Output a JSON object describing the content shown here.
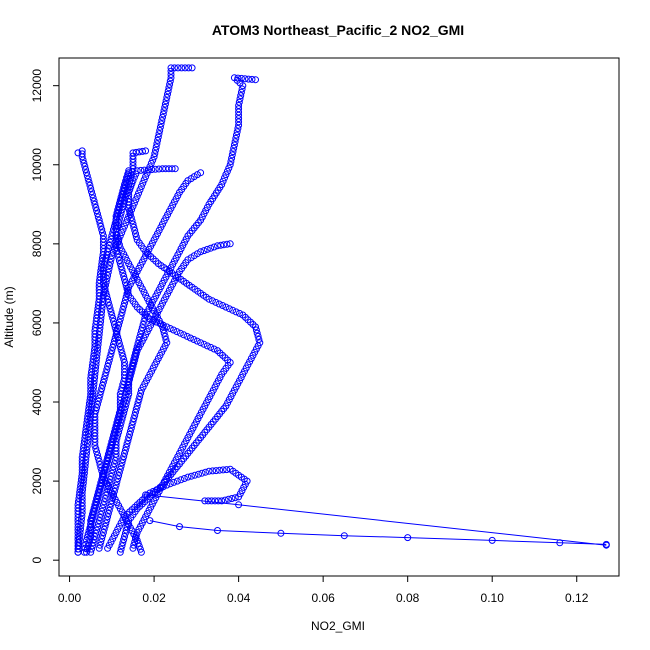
{
  "chart_data": {
    "type": "scatter",
    "title": "ATOM3 Northeast_Pacific_2 NO2_GMI",
    "xlabel": "NO2_GMI",
    "ylabel": "Altitude (m)",
    "xlim": [
      -0.0025,
      0.13
    ],
    "ylim": [
      -400,
      12700
    ],
    "xticks": [
      "0.00",
      "0.02",
      "0.04",
      "0.06",
      "0.08",
      "0.10",
      "0.12"
    ],
    "xtick_values": [
      0,
      0.02,
      0.04,
      0.06,
      0.08,
      0.1,
      0.12
    ],
    "yticks": [
      "0",
      "2000",
      "4000",
      "6000",
      "8000",
      "10000",
      "12000"
    ],
    "ytick_values": [
      0,
      2000,
      4000,
      6000,
      8000,
      10000,
      12000
    ],
    "marker": "open-circle",
    "color": "#0000ff",
    "profiles": [
      [
        [
          0.002,
          200
        ],
        [
          0.002,
          600
        ],
        [
          0.002,
          1000
        ],
        [
          0.002,
          1400
        ],
        [
          0.0025,
          1800
        ],
        [
          0.003,
          2200
        ],
        [
          0.003,
          2600
        ],
        [
          0.0035,
          3000
        ],
        [
          0.004,
          3400
        ],
        [
          0.0045,
          3800
        ],
        [
          0.005,
          4200
        ],
        [
          0.005,
          4600
        ],
        [
          0.0055,
          5000
        ],
        [
          0.006,
          5400
        ],
        [
          0.006,
          5800
        ],
        [
          0.0065,
          6200
        ],
        [
          0.007,
          6600
        ],
        [
          0.007,
          7000
        ],
        [
          0.0075,
          7400
        ],
        [
          0.008,
          7800
        ],
        [
          0.008,
          8200
        ],
        [
          0.007,
          8600
        ],
        [
          0.006,
          9000
        ],
        [
          0.005,
          9400
        ],
        [
          0.004,
          9800
        ],
        [
          0.003,
          10200
        ],
        [
          0.003,
          10350
        ],
        [
          0.002,
          10300
        ]
      ],
      [
        [
          0.002,
          200
        ],
        [
          0.0025,
          700
        ],
        [
          0.003,
          1200
        ],
        [
          0.003,
          1700
        ],
        [
          0.0035,
          2200
        ],
        [
          0.004,
          2700
        ],
        [
          0.0045,
          3200
        ],
        [
          0.005,
          3700
        ],
        [
          0.0055,
          4200
        ],
        [
          0.006,
          4700
        ],
        [
          0.0065,
          5200
        ],
        [
          0.007,
          5700
        ],
        [
          0.0075,
          6200
        ],
        [
          0.008,
          6700
        ],
        [
          0.009,
          7200
        ],
        [
          0.01,
          7700
        ],
        [
          0.012,
          8200
        ],
        [
          0.014,
          8700
        ],
        [
          0.016,
          9200
        ],
        [
          0.018,
          9700
        ],
        [
          0.02,
          10200
        ],
        [
          0.021,
          10700
        ],
        [
          0.022,
          11200
        ],
        [
          0.023,
          11700
        ],
        [
          0.024,
          12200
        ],
        [
          0.024,
          12450
        ],
        [
          0.029,
          12450
        ]
      ],
      [
        [
          0.0035,
          200
        ],
        [
          0.004,
          500
        ],
        [
          0.005,
          900
        ],
        [
          0.006,
          1300
        ],
        [
          0.007,
          1700
        ],
        [
          0.008,
          2100
        ],
        [
          0.009,
          2500
        ],
        [
          0.01,
          2900
        ],
        [
          0.011,
          3300
        ],
        [
          0.012,
          3700
        ],
        [
          0.013,
          4100
        ],
        [
          0.014,
          4500
        ],
        [
          0.015,
          4900
        ],
        [
          0.016,
          5300
        ],
        [
          0.018,
          5700
        ],
        [
          0.02,
          6100
        ],
        [
          0.022,
          6500
        ],
        [
          0.024,
          6900
        ],
        [
          0.026,
          7300
        ],
        [
          0.028,
          7600
        ],
        [
          0.031,
          7800
        ],
        [
          0.035,
          7950
        ],
        [
          0.038,
          8000
        ]
      ],
      [
        [
          0.005,
          200
        ],
        [
          0.006,
          600
        ],
        [
          0.007,
          1000
        ],
        [
          0.008,
          1400
        ],
        [
          0.009,
          1800
        ],
        [
          0.01,
          2200
        ],
        [
          0.011,
          2600
        ],
        [
          0.011,
          3000
        ],
        [
          0.012,
          3400
        ],
        [
          0.013,
          3800
        ],
        [
          0.014,
          4200
        ],
        [
          0.014,
          4600
        ],
        [
          0.015,
          5000
        ],
        [
          0.016,
          5400
        ],
        [
          0.017,
          5800
        ],
        [
          0.018,
          6200
        ],
        [
          0.02,
          6600
        ],
        [
          0.022,
          7000
        ],
        [
          0.024,
          7400
        ],
        [
          0.026,
          7800
        ],
        [
          0.028,
          8200
        ],
        [
          0.031,
          8600
        ],
        [
          0.033,
          9000
        ],
        [
          0.036,
          9500
        ],
        [
          0.038,
          10000
        ],
        [
          0.039,
          10500
        ],
        [
          0.04,
          11000
        ],
        [
          0.04,
          11500
        ],
        [
          0.041,
          12000
        ],
        [
          0.039,
          12200
        ],
        [
          0.044,
          12150
        ]
      ],
      [
        [
          0.009,
          300
        ],
        [
          0.011,
          700
        ],
        [
          0.013,
          1100
        ],
        [
          0.016,
          1400
        ],
        [
          0.019,
          1700
        ],
        [
          0.023,
          1900
        ],
        [
          0.028,
          2100
        ],
        [
          0.033,
          2250
        ],
        [
          0.038,
          2300
        ],
        [
          0.042,
          2000
        ],
        [
          0.04,
          1600
        ],
        [
          0.036,
          1500
        ],
        [
          0.032,
          1500
        ]
      ],
      [
        [
          0.012,
          200
        ],
        [
          0.013,
          600
        ],
        [
          0.014,
          1000
        ],
        [
          0.016,
          1300
        ],
        [
          0.019,
          1600
        ],
        [
          0.022,
          1900
        ],
        [
          0.025,
          2300
        ],
        [
          0.028,
          2700
        ],
        [
          0.031,
          3100
        ],
        [
          0.034,
          3500
        ],
        [
          0.037,
          3900
        ],
        [
          0.039,
          4300
        ],
        [
          0.041,
          4700
        ],
        [
          0.043,
          5100
        ],
        [
          0.045,
          5500
        ],
        [
          0.044,
          5900
        ],
        [
          0.041,
          6200
        ],
        [
          0.037,
          6400
        ],
        [
          0.033,
          6600
        ],
        [
          0.029,
          6900
        ],
        [
          0.025,
          7200
        ],
        [
          0.021,
          7500
        ],
        [
          0.018,
          7800
        ],
        [
          0.016,
          8100
        ],
        [
          0.015,
          8500
        ],
        [
          0.014,
          8900
        ],
        [
          0.014,
          9300
        ],
        [
          0.015,
          9600
        ],
        [
          0.016,
          9850
        ],
        [
          0.022,
          9900
        ],
        [
          0.025,
          9900
        ]
      ],
      [
        [
          0.015,
          300
        ],
        [
          0.016,
          700
        ],
        [
          0.018,
          1100
        ],
        [
          0.02,
          1500
        ],
        [
          0.022,
          1900
        ],
        [
          0.024,
          2300
        ],
        [
          0.026,
          2700
        ],
        [
          0.028,
          3100
        ],
        [
          0.03,
          3500
        ],
        [
          0.032,
          3900
        ],
        [
          0.034,
          4300
        ],
        [
          0.036,
          4700
        ],
        [
          0.038,
          5000
        ],
        [
          0.035,
          5300
        ],
        [
          0.031,
          5500
        ],
        [
          0.027,
          5700
        ],
        [
          0.023,
          5900
        ],
        [
          0.019,
          6100
        ],
        [
          0.016,
          6400
        ],
        [
          0.014,
          6700
        ],
        [
          0.013,
          7100
        ],
        [
          0.012,
          7500
        ],
        [
          0.011,
          7900
        ],
        [
          0.011,
          8300
        ],
        [
          0.012,
          8700
        ],
        [
          0.013,
          9100
        ],
        [
          0.014,
          9500
        ],
        [
          0.015,
          9900
        ],
        [
          0.015,
          10300
        ],
        [
          0.018,
          10350
        ]
      ],
      [
        [
          0.007,
          300
        ],
        [
          0.008,
          700
        ],
        [
          0.009,
          1100
        ],
        [
          0.01,
          1500
        ],
        [
          0.011,
          1900
        ],
        [
          0.012,
          2300
        ],
        [
          0.013,
          2700
        ],
        [
          0.014,
          3100
        ],
        [
          0.015,
          3500
        ],
        [
          0.016,
          3900
        ],
        [
          0.017,
          4300
        ],
        [
          0.019,
          4700
        ],
        [
          0.021,
          5100
        ],
        [
          0.023,
          5500
        ],
        [
          0.022,
          5900
        ],
        [
          0.02,
          6300
        ],
        [
          0.018,
          6700
        ],
        [
          0.016,
          7100
        ],
        [
          0.014,
          7500
        ],
        [
          0.012,
          7900
        ],
        [
          0.011,
          8300
        ],
        [
          0.011,
          8700
        ],
        [
          0.012,
          9100
        ],
        [
          0.013,
          9500
        ],
        [
          0.014,
          9850
        ]
      ],
      [
        [
          0.004,
          200
        ],
        [
          0.005,
          600
        ],
        [
          0.005,
          1000
        ],
        [
          0.006,
          1400
        ],
        [
          0.007,
          1800
        ],
        [
          0.008,
          2200
        ],
        [
          0.009,
          2600
        ],
        [
          0.01,
          3000
        ],
        [
          0.011,
          3400
        ],
        [
          0.012,
          3800
        ],
        [
          0.012,
          4200
        ],
        [
          0.013,
          4600
        ],
        [
          0.013,
          5000
        ],
        [
          0.012,
          5400
        ],
        [
          0.011,
          5800
        ],
        [
          0.01,
          6200
        ],
        [
          0.009,
          6600
        ],
        [
          0.008,
          7000
        ],
        [
          0.008,
          7400
        ],
        [
          0.009,
          7800
        ],
        [
          0.01,
          8200
        ],
        [
          0.011,
          8600
        ],
        [
          0.012,
          9000
        ],
        [
          0.013,
          9400
        ],
        [
          0.014,
          9800
        ]
      ],
      [
        [
          0.017,
          200
        ],
        [
          0.016,
          500
        ],
        [
          0.014,
          900
        ],
        [
          0.012,
          1300
        ],
        [
          0.01,
          1700
        ],
        [
          0.008,
          2100
        ],
        [
          0.007,
          2500
        ],
        [
          0.006,
          2900
        ],
        [
          0.006,
          3300
        ],
        [
          0.006,
          3700
        ],
        [
          0.007,
          4100
        ],
        [
          0.008,
          4500
        ],
        [
          0.009,
          4900
        ],
        [
          0.01,
          5300
        ],
        [
          0.011,
          5700
        ],
        [
          0.012,
          6100
        ],
        [
          0.013,
          6500
        ],
        [
          0.014,
          6900
        ],
        [
          0.016,
          7300
        ],
        [
          0.018,
          7700
        ],
        [
          0.02,
          8100
        ],
        [
          0.022,
          8500
        ],
        [
          0.024,
          8900
        ],
        [
          0.026,
          9300
        ],
        [
          0.028,
          9600
        ],
        [
          0.031,
          9800
        ]
      ]
    ],
    "outlier_segments": [
      [
        [
          0.018,
          1650
        ],
        [
          0.04,
          1400
        ],
        [
          0.127,
          380
        ]
      ],
      [
        [
          0.019,
          1000
        ],
        [
          0.026,
          850
        ],
        [
          0.035,
          750
        ],
        [
          0.05,
          680
        ],
        [
          0.065,
          620
        ],
        [
          0.08,
          570
        ],
        [
          0.1,
          500
        ],
        [
          0.116,
          440
        ],
        [
          0.127,
          400
        ]
      ]
    ]
  }
}
